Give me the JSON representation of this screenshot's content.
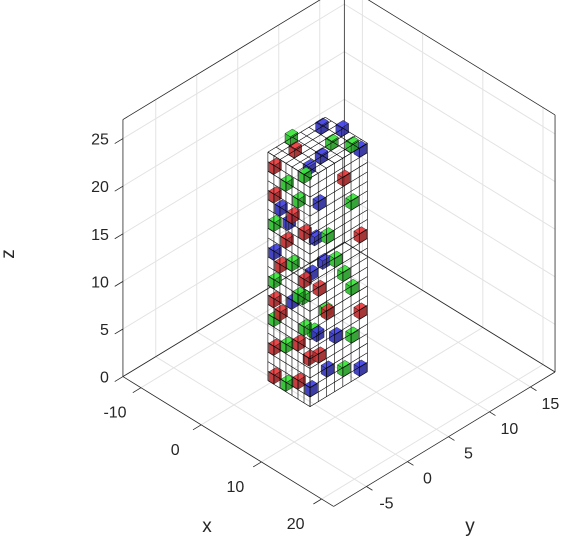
{
  "chart_data": {
    "type": "3d-voxel-scatter",
    "xlabel": "x",
    "ylabel": "y",
    "zlabel": "z",
    "x_ticks": [
      "-10",
      "0",
      "10",
      "20"
    ],
    "y_ticks": [
      "-5",
      "0",
      "5",
      "10",
      "15"
    ],
    "z_ticks": [
      "0",
      "5",
      "10",
      "15",
      "20",
      "25"
    ],
    "xlim": [
      -13,
      22
    ],
    "ylim": [
      -9,
      18
    ],
    "zlim": [
      0,
      27
    ],
    "lattice": {
      "x_range": [
        0,
        6
      ],
      "y_range": [
        0,
        6
      ],
      "z_range": [
        0,
        24
      ]
    },
    "grid": true,
    "colors": {
      "red": "#e8383b",
      "green": "#37e637",
      "blue": "#4040e6",
      "wire": "#000000"
    },
    "points": [
      {
        "x": 0,
        "y": 0,
        "z": 0,
        "color": "red"
      },
      {
        "x": 2,
        "y": 0,
        "z": 0,
        "color": "green"
      },
      {
        "x": 4,
        "y": 0,
        "z": 1,
        "color": "red"
      },
      {
        "x": 6,
        "y": 0,
        "z": 1,
        "color": "blue"
      },
      {
        "x": 6,
        "y": 2,
        "z": 2,
        "color": "blue"
      },
      {
        "x": 6,
        "y": 4,
        "z": 1,
        "color": "green"
      },
      {
        "x": 6,
        "y": 6,
        "z": 0,
        "color": "blue"
      },
      {
        "x": 3,
        "y": 2,
        "z": 2,
        "color": "red"
      },
      {
        "x": 1,
        "y": 4,
        "z": 3,
        "color": "green"
      },
      {
        "x": 0,
        "y": 0,
        "z": 3,
        "color": "red"
      },
      {
        "x": 2,
        "y": 0,
        "z": 4,
        "color": "green"
      },
      {
        "x": 6,
        "y": 1,
        "z": 4,
        "color": "red"
      },
      {
        "x": 6,
        "y": 5,
        "z": 4,
        "color": "green"
      },
      {
        "x": 4,
        "y": 0,
        "z": 5,
        "color": "red"
      },
      {
        "x": 0,
        "y": 0,
        "z": 6,
        "color": "green"
      },
      {
        "x": 6,
        "y": 3,
        "z": 5,
        "color": "blue"
      },
      {
        "x": 3,
        "y": 4,
        "z": 6,
        "color": "green"
      },
      {
        "x": 6,
        "y": 6,
        "z": 6,
        "color": "red"
      },
      {
        "x": 1,
        "y": 0,
        "z": 7,
        "color": "red"
      },
      {
        "x": 5,
        "y": 0,
        "z": 7,
        "color": "green"
      },
      {
        "x": 6,
        "y": 2,
        "z": 8,
        "color": "red"
      },
      {
        "x": 0,
        "y": 0,
        "z": 8,
        "color": "red"
      },
      {
        "x": 3,
        "y": 0,
        "z": 9,
        "color": "blue"
      },
      {
        "x": 6,
        "y": 5,
        "z": 9,
        "color": "green"
      },
      {
        "x": 2,
        "y": 3,
        "z": 10,
        "color": "blue"
      },
      {
        "x": 0,
        "y": 0,
        "z": 10,
        "color": "green"
      },
      {
        "x": 4,
        "y": 0,
        "z": 10,
        "color": "green"
      },
      {
        "x": 6,
        "y": 1,
        "z": 11,
        "color": "red"
      },
      {
        "x": 6,
        "y": 4,
        "z": 11,
        "color": "green"
      },
      {
        "x": 1,
        "y": 0,
        "z": 12,
        "color": "red"
      },
      {
        "x": 5,
        "y": 0,
        "z": 12,
        "color": "red"
      },
      {
        "x": 0,
        "y": 0,
        "z": 13,
        "color": "blue"
      },
      {
        "x": 3,
        "y": 0,
        "z": 13,
        "color": "green"
      },
      {
        "x": 6,
        "y": 3,
        "z": 13,
        "color": "green"
      },
      {
        "x": 6,
        "y": 6,
        "z": 14,
        "color": "red"
      },
      {
        "x": 2,
        "y": 0,
        "z": 15,
        "color": "red"
      },
      {
        "x": 4,
        "y": 2,
        "z": 15,
        "color": "blue"
      },
      {
        "x": 0,
        "y": 0,
        "z": 16,
        "color": "green"
      },
      {
        "x": 6,
        "y": 2,
        "z": 16,
        "color": "green"
      },
      {
        "x": 5,
        "y": 0,
        "z": 17,
        "color": "red"
      },
      {
        "x": 1,
        "y": 0,
        "z": 18,
        "color": "blue"
      },
      {
        "x": 3,
        "y": 0,
        "z": 18,
        "color": "red"
      },
      {
        "x": 6,
        "y": 5,
        "z": 18,
        "color": "green"
      },
      {
        "x": 0,
        "y": 0,
        "z": 19,
        "color": "red"
      },
      {
        "x": 4,
        "y": 0,
        "z": 20,
        "color": "green"
      },
      {
        "x": 6,
        "y": 1,
        "z": 20,
        "color": "blue"
      },
      {
        "x": 2,
        "y": 0,
        "z": 21,
        "color": "green"
      },
      {
        "x": 6,
        "y": 4,
        "z": 21,
        "color": "red"
      },
      {
        "x": 0,
        "y": 0,
        "z": 22,
        "color": "red"
      },
      {
        "x": 3,
        "y": 2,
        "z": 22,
        "color": "blue"
      },
      {
        "x": 5,
        "y": 0,
        "z": 23,
        "color": "green"
      },
      {
        "x": 6,
        "y": 6,
        "z": 23,
        "color": "blue"
      },
      {
        "x": 0,
        "y": 2,
        "z": 24,
        "color": "green"
      },
      {
        "x": 1,
        "y": 5,
        "z": 24,
        "color": "blue"
      },
      {
        "x": 3,
        "y": 6,
        "z": 24,
        "color": "blue"
      },
      {
        "x": 6,
        "y": 5,
        "z": 24,
        "color": "green"
      },
      {
        "x": 5,
        "y": 2,
        "z": 24,
        "color": "blue"
      },
      {
        "x": 2,
        "y": 1,
        "z": 24,
        "color": "red"
      },
      {
        "x": 4,
        "y": 4,
        "z": 24,
        "color": "green"
      },
      {
        "x": 1,
        "y": 1,
        "z": 16,
        "color": "blue"
      },
      {
        "x": 4,
        "y": 3,
        "z": 12,
        "color": "blue"
      },
      {
        "x": 2,
        "y": 2,
        "z": 8,
        "color": "green"
      },
      {
        "x": 3,
        "y": 3,
        "z": 4,
        "color": "blue"
      }
    ]
  }
}
